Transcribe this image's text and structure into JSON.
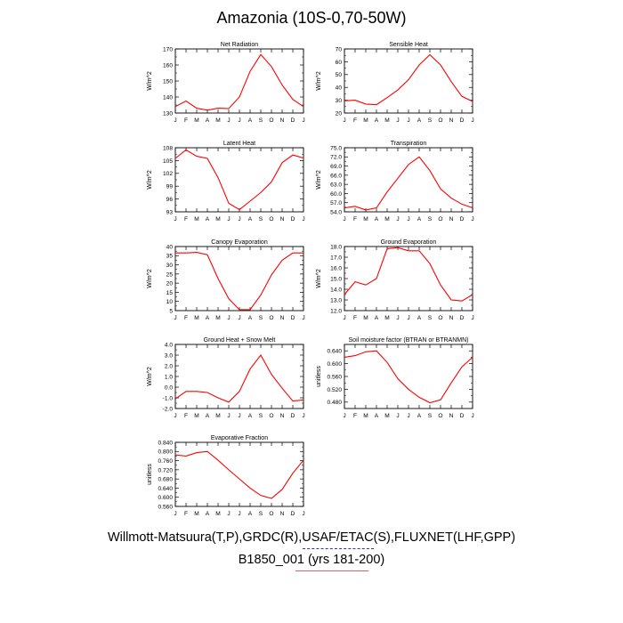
{
  "title": "Amazonia (10S-0,70-50W)",
  "footer": {
    "obs_sources": "Willmott-Matsuura(T,P),GRDC(R),USAF/ETAC(S),FLUXNET(LHF,GPP)",
    "case": "B1850_001 (yrs 181-200)"
  },
  "colors": {
    "series": "#ff0000",
    "obs_legend": "#3333aa",
    "axis": "#000000"
  },
  "chart_data": [
    {
      "type": "line",
      "title": "Net Radiation",
      "ylabel": "W/m^2",
      "x": [
        "J",
        "F",
        "M",
        "A",
        "M",
        "J",
        "J",
        "A",
        "S",
        "O",
        "N",
        "D",
        "J"
      ],
      "yticks": [
        "130",
        "140",
        "150",
        "160",
        "170"
      ],
      "ylim": [
        130,
        170
      ],
      "values": [
        134,
        137.5,
        133,
        131.8,
        133,
        132.8,
        140,
        156,
        166.5,
        159,
        147.5,
        138.5,
        134
      ]
    },
    {
      "type": "line",
      "title": "Sensible Heat",
      "ylabel": "W/m^2",
      "x": [
        "J",
        "F",
        "M",
        "A",
        "M",
        "J",
        "J",
        "A",
        "S",
        "O",
        "N",
        "D",
        "J"
      ],
      "yticks": [
        "20",
        "30",
        "40",
        "50",
        "60",
        "70"
      ],
      "ylim": [
        20,
        70
      ],
      "values": [
        29.5,
        30,
        27,
        26.5,
        32,
        38,
        46,
        57.5,
        65.5,
        57.5,
        44.5,
        33,
        29
      ]
    },
    {
      "type": "line",
      "title": "Latent Heat",
      "ylabel": "W/m^2",
      "x": [
        "J",
        "F",
        "M",
        "A",
        "M",
        "J",
        "J",
        "A",
        "S",
        "O",
        "N",
        "D",
        "J"
      ],
      "yticks": [
        "93",
        "96",
        "99",
        "102",
        "105",
        "108"
      ],
      "ylim": [
        93,
        108
      ],
      "values": [
        105.5,
        107.5,
        106,
        105.5,
        101,
        95,
        93.5,
        95.5,
        97.5,
        100,
        104.5,
        106.3,
        105.6
      ]
    },
    {
      "type": "line",
      "title": "Transpiration",
      "ylabel": "W/m^2",
      "x": [
        "J",
        "F",
        "M",
        "A",
        "M",
        "J",
        "J",
        "A",
        "S",
        "O",
        "N",
        "D",
        "J"
      ],
      "yticks": [
        "54.0",
        "57.0",
        "60.0",
        "63.0",
        "66.0",
        "69.0",
        "72.0",
        "75.0"
      ],
      "ylim": [
        54,
        75
      ],
      "values": [
        55.3,
        55.8,
        54.6,
        55.3,
        60.5,
        65,
        69.5,
        72,
        67.5,
        61.5,
        58.5,
        56.5,
        55.3
      ]
    },
    {
      "type": "line",
      "title": "Canopy Evaporation",
      "ylabel": "W/m^2",
      "x": [
        "J",
        "F",
        "M",
        "A",
        "M",
        "J",
        "J",
        "A",
        "S",
        "O",
        "N",
        "D",
        "J"
      ],
      "yticks": [
        "5",
        "10",
        "15",
        "20",
        "25",
        "30",
        "35",
        "40"
      ],
      "ylim": [
        5,
        40
      ],
      "values": [
        36.5,
        36.5,
        36.8,
        35.5,
        22.5,
        11.5,
        5.5,
        5.5,
        13.5,
        24.5,
        32.5,
        36.5,
        36.5
      ]
    },
    {
      "type": "line",
      "title": "Ground Evaporation",
      "ylabel": "W/m^2",
      "x": [
        "J",
        "F",
        "M",
        "A",
        "M",
        "J",
        "J",
        "A",
        "S",
        "O",
        "N",
        "D",
        "J"
      ],
      "yticks": [
        "12.0",
        "13.0",
        "14.0",
        "15.0",
        "16.0",
        "17.0",
        "18.0"
      ],
      "ylim": [
        12,
        18
      ],
      "values": [
        13.5,
        14.7,
        14.4,
        15,
        17.8,
        17.9,
        17.6,
        17.6,
        16.4,
        14.4,
        13,
        12.9,
        13.5
      ]
    },
    {
      "type": "line",
      "title": "Ground Heat + Snow Melt",
      "ylabel": "W/m^2",
      "x": [
        "J",
        "F",
        "M",
        "A",
        "M",
        "J",
        "J",
        "A",
        "S",
        "O",
        "N",
        "D",
        "J"
      ],
      "yticks": [
        "-2.0",
        "-1.0",
        "0.0",
        "1.0",
        "2.0",
        "3.0",
        "4.0"
      ],
      "ylim": [
        -2,
        4
      ],
      "values": [
        -1.1,
        -0.4,
        -0.4,
        -0.5,
        -1,
        -1.4,
        -0.4,
        1.7,
        3.0,
        1.2,
        -0.1,
        -1.3,
        -1.2
      ]
    },
    {
      "type": "line",
      "title": "Soil moisture factor (BTRAN or BTRANMN)",
      "ylabel": "unitless",
      "x": [
        "J",
        "F",
        "M",
        "A",
        "M",
        "J",
        "J",
        "A",
        "S",
        "O",
        "N",
        "D",
        "J"
      ],
      "yticks": [
        "0.480",
        "0.520",
        "0.560",
        "0.600",
        "0.640"
      ],
      "ylim": [
        0.46,
        0.66
      ],
      "values": [
        0.62,
        0.625,
        0.637,
        0.64,
        0.604,
        0.553,
        0.52,
        0.495,
        0.478,
        0.487,
        0.54,
        0.59,
        0.62
      ]
    },
    {
      "type": "line",
      "title": "Evaporative Fraction",
      "ylabel": "unitless",
      "x": [
        "J",
        "F",
        "M",
        "A",
        "M",
        "J",
        "J",
        "A",
        "S",
        "O",
        "N",
        "D",
        "J"
      ],
      "yticks": [
        "0.560",
        "0.600",
        "0.640",
        "0.680",
        "0.720",
        "0.760",
        "0.800",
        "0.840"
      ],
      "ylim": [
        0.56,
        0.84
      ],
      "values": [
        0.785,
        0.78,
        0.795,
        0.8,
        0.762,
        0.72,
        0.68,
        0.64,
        0.608,
        0.595,
        0.634,
        0.705,
        0.762
      ]
    }
  ]
}
